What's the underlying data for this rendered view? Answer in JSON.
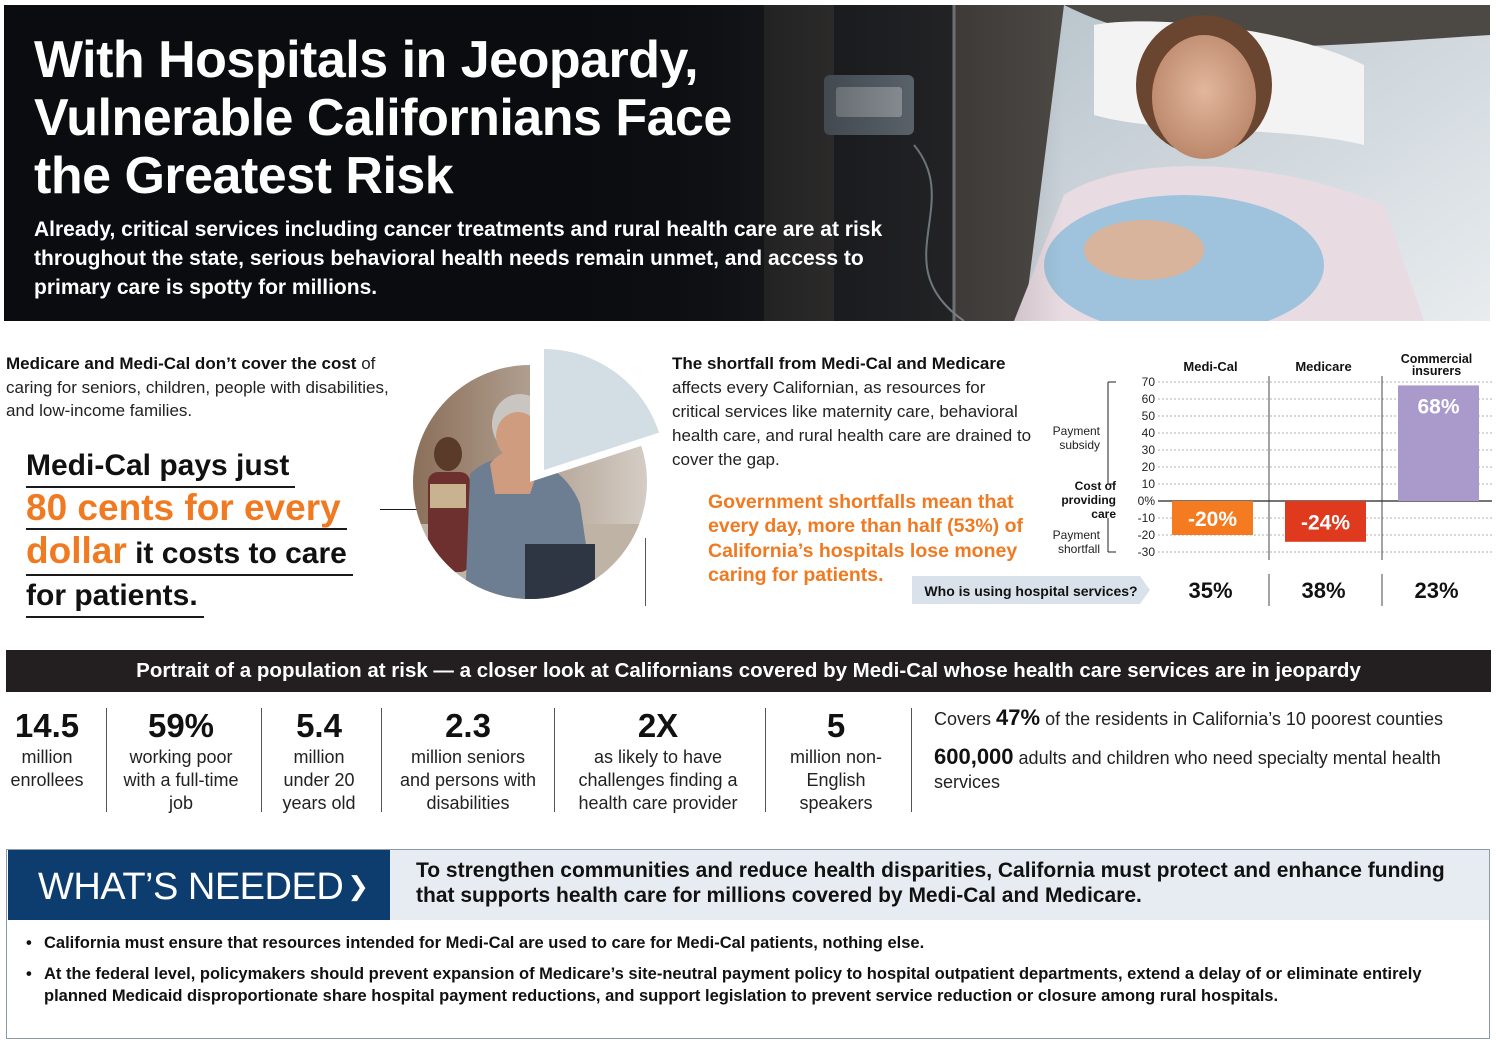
{
  "hero": {
    "title": "With Hospitals in Jeopardy, Vulnerable Californians Face the Greatest Risk",
    "subtitle": "Already, critical services including cancer treatments and rural health care are at risk throughout the state, serious behavioral health needs remain unmet, and access to primary care is spotty for millions."
  },
  "cost": {
    "intro_bold": "Medicare and Medi-Cal don’t cover the cost",
    "intro_rest": "of caring for seniors, children, people with disabilities, and low-income families.",
    "pays_prefix": "Medi-Cal pays just",
    "pays_highlight_1": "80 cents for every",
    "pays_highlight_2": "dollar",
    "pays_suffix_1": "it costs to care",
    "pays_suffix_2": "for patients.",
    "pie_fraction_paid": 0.8
  },
  "shortfall": {
    "bold": "The shortfall from Medi-Cal and Medicare",
    "rest": "affects every Californian, as resources for critical services like maternity care, behavioral health care, and rural health care are drained to cover the gap.",
    "gov": "Government shortfalls mean that every day, more than half (53%) of California’s hospitals lose money caring for patients."
  },
  "chart_data": {
    "type": "bar",
    "categories": [
      "Medi-Cal",
      "Medicare",
      "Commercial insurers"
    ],
    "values": [
      -20,
      -24,
      68
    ],
    "value_labels": [
      "-20%",
      "-24%",
      "68%"
    ],
    "bar_colors": [
      "#f47b20",
      "#e03a1e",
      "#a99acb"
    ],
    "ylim": [
      -30,
      70
    ],
    "yticks": [
      70,
      60,
      50,
      40,
      30,
      20,
      10,
      0,
      -10,
      -20,
      -30
    ],
    "ytick_labels": [
      "70",
      "60",
      "50",
      "40",
      "30",
      "20",
      "10",
      "0%",
      "-10",
      "-20",
      "-30"
    ],
    "axis_annotations": {
      "upper": "Payment subsidy",
      "zero": "Cost of providing care",
      "lower": "Payment shortfall"
    },
    "usage_label": "Who is using hospital services?",
    "usage_values": [
      "35%",
      "38%",
      "23%"
    ]
  },
  "portrait": {
    "banner": "Portrait of a population at risk — a closer look at Californians covered by Medi-Cal whose health care services are in jeopardy",
    "stats": [
      {
        "big": "14.5",
        "label": "million enrollees"
      },
      {
        "big": "59%",
        "label": "working poor with a full-time job"
      },
      {
        "big": "5.4",
        "label": "million under 20 years old"
      },
      {
        "big": "2.3",
        "label": "million seniors and persons with disabilities"
      },
      {
        "big": "2X",
        "label": "as likely to have challenges finding a health care provider"
      },
      {
        "big": "5",
        "label": "million non-English speakers"
      }
    ],
    "covers_prefix": "Covers",
    "covers_big": "47%",
    "covers_suffix": "of the residents in California’s 10 poorest counties",
    "mental_big": "600,000",
    "mental_text": "adults and children who need specialty mental health services"
  },
  "needed": {
    "label": "WHAT’S NEEDED",
    "chevron": "❯",
    "headline": "To strengthen communities and reduce health disparities, California must protect and enhance funding that supports health care for millions covered by Medi-Cal and Medicare.",
    "bullets": [
      "California must ensure that resources intended for Medi-Cal are used to care for Medi-Cal patients, nothing else.",
      "At the federal level, policymakers should prevent expansion of Medicare’s site-neutral payment policy to hospital outpatient departments, extend a delay of or eliminate entirely planned Medicaid disproportionate share hospital payment reductions, and support legislation to prevent service reduction or closure among rural hospitals."
    ]
  }
}
